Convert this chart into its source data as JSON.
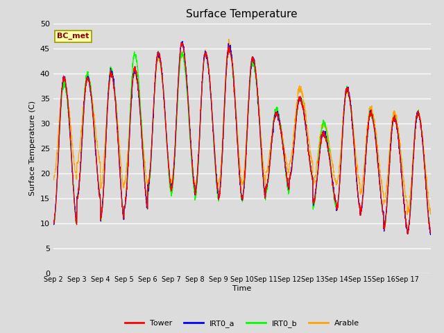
{
  "title": "Surface Temperature",
  "ylabel": "Surface Temperature (C)",
  "xlabel": "Time",
  "annotation": "BC_met",
  "ylim": [
    0,
    50
  ],
  "bg_color": "#dcdcdc",
  "plot_bg_color": "#dcdcdc",
  "grid_color": "white",
  "series": {
    "Tower": {
      "color": "red",
      "zorder": 4
    },
    "IRT0_a": {
      "color": "blue",
      "zorder": 3
    },
    "IRT0_b": {
      "color": "lime",
      "zorder": 2
    },
    "Arable": {
      "color": "orange",
      "zorder": 1
    }
  },
  "xtick_labels": [
    "Sep 2",
    "Sep 3",
    "Sep 4",
    "Sep 5",
    "Sep 6",
    "Sep 7",
    "Sep 8",
    "Sep 9",
    "Sep 10",
    "Sep 11",
    "Sep 12",
    "Sep 13",
    "Sep 14",
    "Sep 15",
    "Sep 16",
    "Sep 17"
  ],
  "ytick_vals": [
    0,
    5,
    10,
    15,
    20,
    25,
    30,
    35,
    40,
    45,
    50
  ],
  "n_days": 16,
  "pts_per_day": 144,
  "day_peaks_tower": [
    39,
    39,
    40,
    41,
    44,
    46,
    44,
    45,
    43,
    32,
    35,
    28,
    37,
    32,
    31,
    32
  ],
  "day_mins_tower": [
    10,
    15,
    11,
    13,
    17,
    17,
    16,
    15,
    15,
    17,
    19,
    14,
    13,
    12,
    9,
    8
  ],
  "day_peaks_irt0a": [
    39,
    39,
    40.5,
    40.5,
    44,
    46,
    44,
    45.5,
    43,
    32,
    35,
    28,
    37,
    32,
    31,
    32
  ],
  "day_mins_irt0a": [
    10,
    15,
    11,
    13,
    17,
    17,
    16,
    15,
    15,
    17,
    19,
    14,
    13,
    12,
    9,
    8
  ],
  "day_peaks_irt0b": [
    38,
    40,
    41,
    44,
    44,
    44,
    44,
    45,
    42,
    33,
    35,
    30,
    37,
    32,
    31,
    32
  ],
  "day_mins_irt0b": [
    10,
    15,
    11,
    13,
    16,
    16,
    15,
    15,
    15,
    16,
    19,
    13,
    13,
    12,
    9,
    8
  ],
  "day_peaks_arable": [
    38,
    39,
    40,
    40,
    43,
    44,
    44,
    46,
    43,
    32,
    37,
    30,
    36,
    33,
    32,
    32
  ],
  "day_mins_arable": [
    19,
    22,
    17,
    18,
    18,
    18,
    17,
    18,
    18,
    20,
    22,
    18,
    18,
    16,
    14,
    12
  ]
}
